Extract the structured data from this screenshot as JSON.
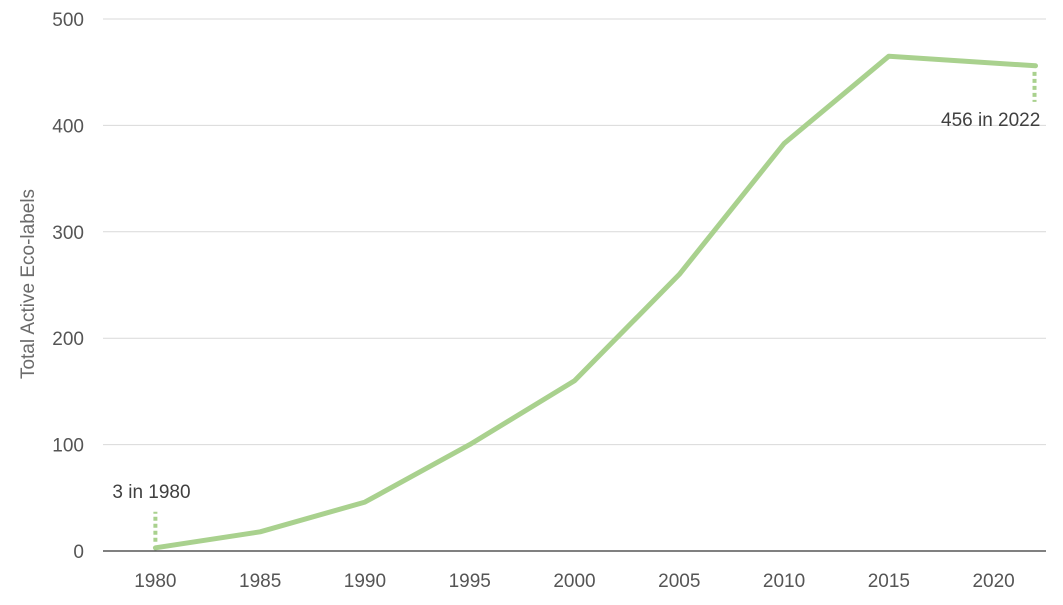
{
  "chart_data": {
    "type": "line",
    "title": "",
    "xlabel": "",
    "ylabel": "Total Active Eco-labels",
    "x": [
      1980,
      1985,
      1990,
      1995,
      2000,
      2005,
      2010,
      2015,
      2022
    ],
    "series": [
      {
        "values": [
          3,
          18,
          46,
          100,
          160,
          260,
          383,
          465,
          456
        ],
        "color": "#a9d18e"
      }
    ],
    "xticks": [
      1980,
      1985,
      1990,
      1995,
      2000,
      2005,
      2010,
      2015,
      2020
    ],
    "yticks": [
      0,
      100,
      200,
      300,
      400,
      500
    ],
    "xlim": [
      1977.5,
      2022.5
    ],
    "ylim": [
      0,
      500
    ],
    "grid": true,
    "legend": "none",
    "annotations": [
      {
        "text": "3 in 1980",
        "x": 1980,
        "y": 3
      },
      {
        "text": "456 in 2022",
        "x": 2022,
        "y": 456
      }
    ]
  }
}
